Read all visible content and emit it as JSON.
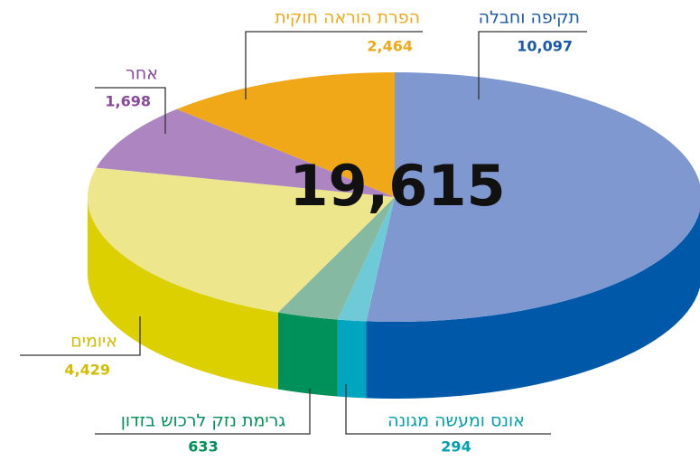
{
  "chart_data": {
    "type": "pie3d",
    "total": {
      "value": 19615,
      "label": "19,615"
    },
    "categories": [
      "תקיפה וחבלה",
      "אונס ומעשה מגונה",
      "גרימת נזק לרכוש בזדון",
      "איומים",
      "אחר",
      "הפרת הוראה חוקית"
    ],
    "values": [
      10097,
      294,
      633,
      4429,
      1698,
      2464
    ],
    "value_labels": [
      "10,097",
      "294",
      "633",
      "4,429",
      "1,698",
      "2,464"
    ],
    "colors": [
      "#7f98d0",
      "#6fcad8",
      "#86b9a2",
      "#ede68c",
      "#ad86c1",
      "#f0a818"
    ],
    "side_colors": [
      "#0058a8",
      "#00a5c0",
      "#00905a",
      "#dcd000",
      "#a874bc",
      "#e89a10"
    ],
    "label_colors": [
      "#1a5aa8",
      "#00a0b0",
      "#00905a",
      "#d4bc00",
      "#8a4a9a",
      "#f0a818"
    ]
  }
}
